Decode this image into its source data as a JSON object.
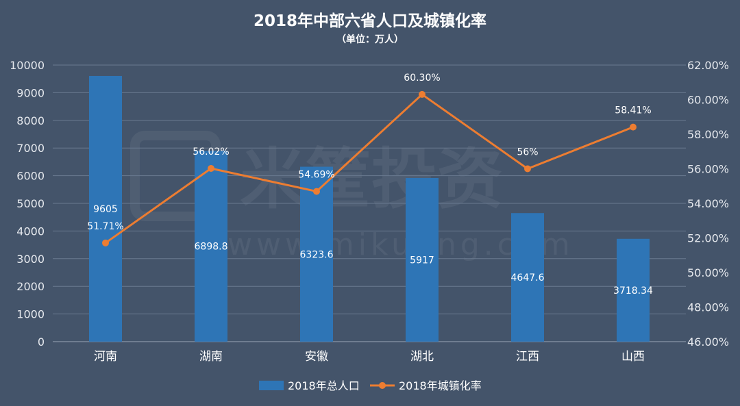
{
  "chart_data": {
    "type": "bar+line",
    "title": "2018年中部六省人口及城镇化率",
    "subtitle": "（单位：万人）",
    "categories": [
      "河南",
      "湖南",
      "安徽",
      "湖北",
      "江西",
      "山西"
    ],
    "series": [
      {
        "name": "2018年总人口",
        "type": "bar",
        "axis": "left",
        "values": [
          9605,
          6898.8,
          6323.6,
          5917,
          4647.6,
          3718.34
        ],
        "labels": [
          "9605",
          "6898.8",
          "6323.6",
          "5917",
          "4647.6",
          "3718.34"
        ],
        "color": "#2e75b6"
      },
      {
        "name": "2018年城镇化率",
        "type": "line",
        "axis": "right",
        "values": [
          51.71,
          56.02,
          54.69,
          60.3,
          56.0,
          58.41
        ],
        "labels": [
          "51.71%",
          "56.02%",
          "54.69%",
          "60.30%",
          "56%",
          "58.41%"
        ],
        "color": "#ed7d31"
      }
    ],
    "y_left": {
      "min": 0,
      "max": 10000,
      "ticks": [
        "0",
        "1000",
        "2000",
        "3000",
        "4000",
        "5000",
        "6000",
        "7000",
        "8000",
        "9000",
        "10000"
      ]
    },
    "y_right": {
      "min": 46,
      "max": 62,
      "ticks": [
        "46.00%",
        "48.00%",
        "50.00%",
        "52.00%",
        "54.00%",
        "56.00%",
        "58.00%",
        "60.00%",
        "62.00%"
      ]
    },
    "grid": true,
    "legend": "bottom-center"
  },
  "watermark": {
    "text": "米筐投资",
    "url": "www.mikuang.com"
  },
  "colors": {
    "background": "#44546a",
    "bar": "#2e75b6",
    "line": "#ed7d31",
    "grid": "#6a7a90"
  }
}
